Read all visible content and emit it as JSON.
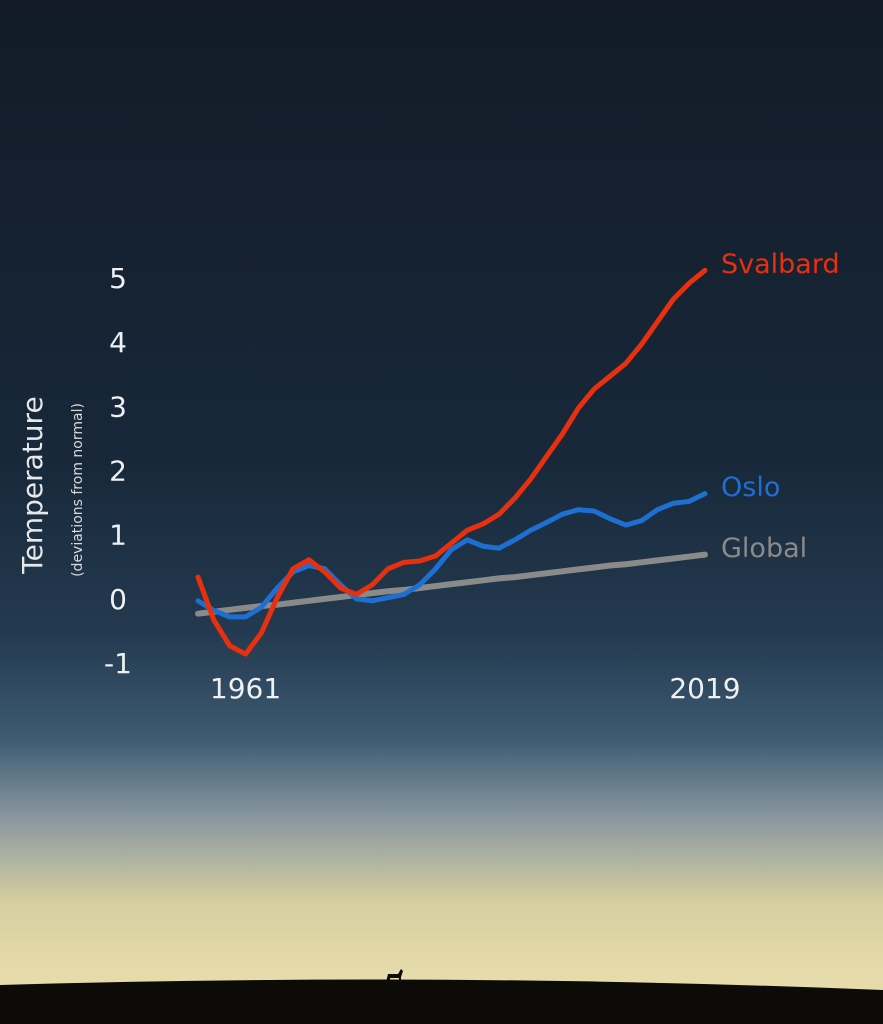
{
  "chart_data": {
    "type": "line",
    "ylabel": "Temperature",
    "ylabel_note": "(deviations from normal)",
    "x": [
      1955,
      1957,
      1959,
      1961,
      1963,
      1965,
      1967,
      1969,
      1971,
      1973,
      1975,
      1977,
      1979,
      1981,
      1983,
      1985,
      1987,
      1989,
      1991,
      1993,
      1995,
      1997,
      1999,
      2001,
      2003,
      2005,
      2007,
      2009,
      2011,
      2013,
      2015,
      2017,
      2019
    ],
    "series": [
      {
        "name": "Global",
        "color": "#8a8a8a",
        "values": [
          -0.2,
          -0.17,
          -0.14,
          -0.11,
          -0.08,
          -0.06,
          -0.03,
          0.0,
          0.03,
          0.06,
          0.09,
          0.12,
          0.15,
          0.17,
          0.2,
          0.23,
          0.26,
          0.29,
          0.32,
          0.35,
          0.37,
          0.4,
          0.43,
          0.46,
          0.49,
          0.52,
          0.55,
          0.57,
          0.6,
          0.63,
          0.66,
          0.69,
          0.72
        ]
      },
      {
        "name": "Oslo",
        "color": "#1f6fd1",
        "values": [
          0.0,
          -0.15,
          -0.25,
          -0.25,
          -0.1,
          0.2,
          0.45,
          0.55,
          0.5,
          0.25,
          0.03,
          0.0,
          0.05,
          0.1,
          0.25,
          0.5,
          0.8,
          0.95,
          0.85,
          0.82,
          0.95,
          1.1,
          1.22,
          1.35,
          1.42,
          1.4,
          1.28,
          1.18,
          1.25,
          1.42,
          1.52,
          1.55,
          1.67
        ]
      },
      {
        "name": "Svalbard",
        "color": "#e8300f",
        "values": [
          0.37,
          -0.3,
          -0.7,
          -0.83,
          -0.5,
          0.05,
          0.5,
          0.64,
          0.45,
          0.2,
          0.1,
          0.25,
          0.5,
          0.6,
          0.62,
          0.7,
          0.9,
          1.1,
          1.2,
          1.35,
          1.6,
          1.9,
          2.25,
          2.6,
          3.0,
          3.3,
          3.5,
          3.7,
          4.0,
          4.35,
          4.7,
          4.95,
          5.15
        ]
      }
    ],
    "xlim": [
      1955,
      2019
    ],
    "xticks": [
      1961,
      2019
    ],
    "ylim": [
      -1,
      5
    ],
    "yticks": [
      5,
      4,
      3,
      2,
      1,
      0,
      -1
    ],
    "grid": false
  }
}
